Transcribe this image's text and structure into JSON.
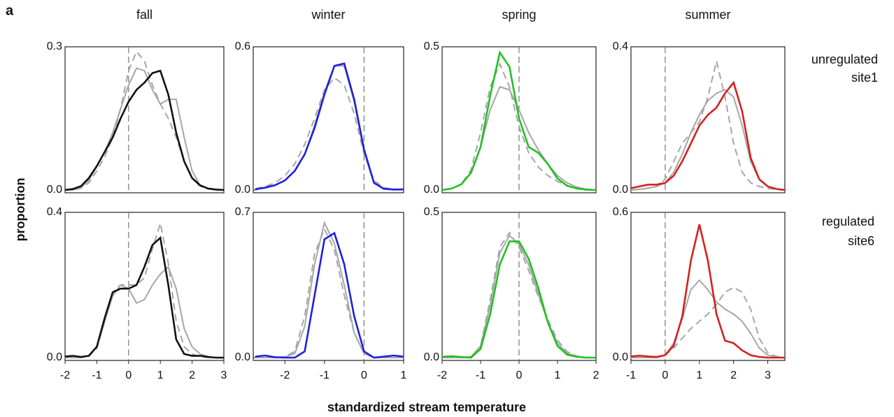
{
  "panel_label": "a",
  "y_label": "proportion",
  "x_label": "standardized stream temperature",
  "column_titles": [
    "fall",
    "winter",
    "spring",
    "summer"
  ],
  "row_labels": [
    [
      "unregulated",
      "site1"
    ],
    [
      "regulated",
      "site6"
    ]
  ],
  "chart_data": [
    {
      "type": "line",
      "xlim": [
        -2,
        3
      ],
      "ylim": [
        0,
        0.3
      ],
      "yticks": [
        {
          "value": 0,
          "label": "0.0"
        },
        0.3
      ],
      "vline": 0,
      "x": [
        -2,
        -1.75,
        -1.5,
        -1.25,
        -1,
        -0.75,
        -0.5,
        -0.25,
        0,
        0.25,
        0.5,
        0.75,
        1,
        1.25,
        1.5,
        1.75,
        2,
        2.25,
        2.5,
        2.75,
        3
      ],
      "series": [
        {
          "color": "#a6a6a6",
          "dash": true,
          "values": [
            0,
            0,
            0.004,
            0.015,
            0.04,
            0.07,
            0.11,
            0.17,
            0.25,
            0.29,
            0.27,
            0.22,
            0.18,
            0.15,
            0.11,
            0.06,
            0.025,
            0.008,
            0.002,
            0,
            0
          ]
        },
        {
          "color": "#a6a6a6",
          "dash": false,
          "values": [
            0,
            0,
            0.005,
            0.02,
            0.05,
            0.08,
            0.12,
            0.17,
            0.22,
            0.255,
            0.25,
            0.21,
            0.18,
            0.19,
            0.19,
            0.11,
            0.04,
            0.01,
            0.003,
            0,
            0
          ]
        },
        {
          "color": "#111111",
          "dash": false,
          "values": [
            0,
            0.002,
            0.008,
            0.025,
            0.05,
            0.08,
            0.11,
            0.15,
            0.185,
            0.21,
            0.225,
            0.245,
            0.25,
            0.2,
            0.12,
            0.06,
            0.025,
            0.01,
            0.003,
            0.001,
            0
          ]
        }
      ]
    },
    {
      "type": "line",
      "xlim": [
        -2.8,
        1
      ],
      "ylim": [
        0,
        0.6
      ],
      "yticks": [
        {
          "value": 0,
          "label": "0.0"
        },
        0.6
      ],
      "vline": 0,
      "x": [
        -2.75,
        -2.5,
        -2.25,
        -2,
        -1.75,
        -1.5,
        -1.25,
        -1,
        -0.75,
        -0.5,
        -0.25,
        0,
        0.25,
        0.5,
        0.75,
        1
      ],
      "series": [
        {
          "color": "#a6a6a6",
          "dash": true,
          "values": [
            0.005,
            0.015,
            0.03,
            0.06,
            0.11,
            0.19,
            0.3,
            0.42,
            0.47,
            0.44,
            0.32,
            0.15,
            0.04,
            0.01,
            0.003,
            0
          ]
        },
        {
          "color": "#a6a6a6",
          "dash": false,
          "values": [
            0.002,
            0.008,
            0.02,
            0.04,
            0.08,
            0.15,
            0.27,
            0.41,
            0.52,
            0.52,
            0.37,
            0.16,
            0.03,
            0.005,
            0.001,
            0
          ]
        },
        {
          "color": "#1f1fe0",
          "dash": false,
          "values": [
            0.003,
            0.01,
            0.02,
            0.04,
            0.08,
            0.15,
            0.26,
            0.4,
            0.52,
            0.53,
            0.38,
            0.17,
            0.03,
            0.005,
            0.002,
            0.003
          ]
        }
      ]
    },
    {
      "type": "line",
      "xlim": [
        -2,
        2
      ],
      "ylim": [
        0,
        0.5
      ],
      "yticks": [
        {
          "value": 0,
          "label": "0.0"
        },
        0.5
      ],
      "vline": 0,
      "x": [
        -2,
        -1.75,
        -1.5,
        -1.25,
        -1,
        -0.75,
        -0.5,
        -0.25,
        0,
        0.25,
        0.5,
        0.75,
        1,
        1.25,
        1.5,
        1.75,
        2
      ],
      "series": [
        {
          "color": "#a6a6a6",
          "dash": true,
          "values": [
            0,
            0.005,
            0.02,
            0.07,
            0.2,
            0.36,
            0.44,
            0.36,
            0.22,
            0.13,
            0.08,
            0.05,
            0.03,
            0.015,
            0.005,
            0.002,
            0
          ]
        },
        {
          "color": "#a6a6a6",
          "dash": false,
          "values": [
            0,
            0.005,
            0.02,
            0.06,
            0.15,
            0.28,
            0.36,
            0.35,
            0.28,
            0.2,
            0.14,
            0.09,
            0.05,
            0.025,
            0.01,
            0.003,
            0
          ]
        },
        {
          "color": "#22c022",
          "dash": false,
          "values": [
            0,
            0.005,
            0.02,
            0.06,
            0.15,
            0.33,
            0.48,
            0.43,
            0.25,
            0.15,
            0.13,
            0.09,
            0.04,
            0.015,
            0.005,
            0.001,
            0
          ]
        }
      ]
    },
    {
      "type": "line",
      "xlim": [
        -1,
        3.5
      ],
      "ylim": [
        0,
        0.4
      ],
      "yticks": [
        {
          "value": 0,
          "label": "0.0"
        },
        0.4
      ],
      "vline": 0,
      "x": [
        -1,
        -0.75,
        -0.5,
        -0.25,
        0,
        0.25,
        0.5,
        0.75,
        1,
        1.25,
        1.5,
        1.75,
        2,
        2.25,
        2.5,
        2.75,
        3,
        3.25,
        3.5
      ],
      "series": [
        {
          "color": "#a6a6a6",
          "dash": true,
          "values": [
            0,
            0.002,
            0.005,
            0.01,
            0.03,
            0.08,
            0.13,
            0.16,
            0.19,
            0.26,
            0.36,
            0.26,
            0.13,
            0.05,
            0.02,
            0.01,
            0.004,
            0.001,
            0
          ]
        },
        {
          "color": "#a6a6a6",
          "dash": false,
          "values": [
            0,
            0.002,
            0.005,
            0.01,
            0.02,
            0.05,
            0.1,
            0.16,
            0.21,
            0.25,
            0.27,
            0.28,
            0.26,
            0.18,
            0.08,
            0.03,
            0.01,
            0.003,
            0
          ]
        },
        {
          "color": "#d42020",
          "dash": false,
          "values": [
            0.005,
            0.01,
            0.015,
            0.015,
            0.02,
            0.04,
            0.08,
            0.13,
            0.18,
            0.21,
            0.23,
            0.27,
            0.3,
            0.22,
            0.09,
            0.03,
            0.01,
            0.003,
            0
          ]
        }
      ]
    },
    {
      "type": "line",
      "xlim": [
        -2,
        3
      ],
      "ylim": [
        0,
        0.4
      ],
      "yticks": [
        {
          "value": 0,
          "label": "0.0"
        },
        0.4
      ],
      "xticks": [
        -2,
        -1,
        0,
        1,
        2,
        3
      ],
      "vline": 0,
      "x": [
        -2,
        -1.75,
        -1.5,
        -1.25,
        -1,
        -0.75,
        -0.5,
        -0.25,
        0,
        0.25,
        0.5,
        0.75,
        1,
        1.25,
        1.5,
        1.75,
        2,
        2.25,
        2.5,
        2.75,
        3
      ],
      "series": [
        {
          "color": "#a6a6a6",
          "dash": true,
          "values": [
            0,
            0,
            0,
            0.005,
            0.025,
            0.1,
            0.18,
            0.2,
            0.2,
            0.2,
            0.22,
            0.3,
            0.37,
            0.26,
            0.1,
            0.03,
            0.01,
            0.003,
            0,
            0,
            0
          ]
        },
        {
          "color": "#a6a6a6",
          "dash": false,
          "values": [
            0,
            0,
            0,
            0.005,
            0.03,
            0.1,
            0.17,
            0.2,
            0.19,
            0.15,
            0.16,
            0.2,
            0.23,
            0.25,
            0.19,
            0.08,
            0.03,
            0.01,
            0.003,
            0,
            0
          ]
        },
        {
          "color": "#111111",
          "dash": false,
          "values": [
            0.003,
            0.005,
            0.002,
            0.005,
            0.03,
            0.11,
            0.18,
            0.19,
            0.19,
            0.2,
            0.25,
            0.31,
            0.33,
            0.2,
            0.05,
            0.01,
            0.005,
            0.005,
            0.002,
            0,
            0
          ]
        }
      ]
    },
    {
      "type": "line",
      "xlim": [
        -2.8,
        1
      ],
      "ylim": [
        0,
        0.7
      ],
      "yticks": [
        {
          "value": 0,
          "label": "0.0"
        },
        0.7
      ],
      "xticks": [
        -2,
        -1,
        0,
        1
      ],
      "vline": 0,
      "x": [
        -2.75,
        -2.5,
        -2.25,
        -2,
        -1.75,
        -1.5,
        -1.25,
        -1,
        -0.75,
        -0.5,
        -0.25,
        0,
        0.25,
        0.5,
        0.75,
        1
      ],
      "series": [
        {
          "color": "#a6a6a6",
          "dash": true,
          "values": [
            0,
            0,
            0,
            0.005,
            0.03,
            0.2,
            0.5,
            0.62,
            0.52,
            0.3,
            0.12,
            0.02,
            0,
            0,
            0,
            0
          ]
        },
        {
          "color": "#a6a6a6",
          "dash": false,
          "values": [
            0,
            0,
            0,
            0.003,
            0.02,
            0.15,
            0.45,
            0.65,
            0.55,
            0.35,
            0.12,
            0.02,
            0,
            0,
            0,
            0
          ]
        },
        {
          "color": "#1f1fe0",
          "dash": false,
          "values": [
            0.005,
            0.01,
            0.002,
            0,
            0,
            0.03,
            0.3,
            0.57,
            0.6,
            0.45,
            0.2,
            0.03,
            0,
            0.005,
            0.01,
            0.005
          ]
        }
      ]
    },
    {
      "type": "line",
      "xlim": [
        -2,
        2
      ],
      "ylim": [
        0,
        0.5
      ],
      "yticks": [
        {
          "value": 0,
          "label": "0.0"
        },
        0.5
      ],
      "xticks": [
        -2,
        -1,
        0,
        1,
        2
      ],
      "vline": 0,
      "x": [
        -2,
        -1.75,
        -1.5,
        -1.25,
        -1,
        -0.75,
        -0.5,
        -0.25,
        0,
        0.25,
        0.5,
        0.75,
        1,
        1.25,
        1.5,
        1.75,
        2
      ],
      "series": [
        {
          "color": "#a6a6a6",
          "dash": true,
          "values": [
            0,
            0,
            0,
            0.003,
            0.04,
            0.2,
            0.38,
            0.43,
            0.38,
            0.3,
            0.21,
            0.13,
            0.06,
            0.02,
            0.005,
            0,
            0
          ]
        },
        {
          "color": "#a6a6a6",
          "dash": false,
          "values": [
            0,
            0,
            0,
            0.003,
            0.04,
            0.18,
            0.36,
            0.42,
            0.39,
            0.32,
            0.22,
            0.12,
            0.05,
            0.015,
            0.004,
            0,
            0
          ]
        },
        {
          "color": "#22c022",
          "dash": false,
          "values": [
            0.003,
            0.005,
            0.002,
            0,
            0.03,
            0.15,
            0.32,
            0.4,
            0.4,
            0.34,
            0.24,
            0.12,
            0.04,
            0.01,
            0.003,
            0,
            0
          ]
        }
      ]
    },
    {
      "type": "line",
      "xlim": [
        -1,
        3.5
      ],
      "ylim": [
        0,
        0.6
      ],
      "yticks": [
        {
          "value": 0,
          "label": "0.0"
        },
        0.6
      ],
      "xticks": [
        -1,
        0,
        1,
        2,
        3
      ],
      "vline": 0,
      "x": [
        -1,
        -0.75,
        -0.5,
        -0.25,
        0,
        0.25,
        0.5,
        0.75,
        1,
        1.25,
        1.5,
        1.75,
        2,
        2.25,
        2.5,
        2.75,
        3,
        3.25,
        3.5
      ],
      "series": [
        {
          "color": "#a6a6a6",
          "dash": true,
          "values": [
            0,
            0,
            0,
            0,
            0.01,
            0.04,
            0.08,
            0.12,
            0.15,
            0.18,
            0.22,
            0.27,
            0.29,
            0.27,
            0.2,
            0.08,
            0.02,
            0.005,
            0
          ]
        },
        {
          "color": "#a6a6a6",
          "dash": false,
          "values": [
            0,
            0,
            0,
            0,
            0.01,
            0.06,
            0.16,
            0.28,
            0.32,
            0.28,
            0.23,
            0.2,
            0.18,
            0.15,
            0.1,
            0.04,
            0.01,
            0.002,
            0
          ]
        },
        {
          "color": "#d42020",
          "dash": false,
          "values": [
            0.005,
            0.008,
            0.005,
            0.003,
            0.01,
            0.05,
            0.17,
            0.4,
            0.55,
            0.4,
            0.18,
            0.07,
            0.06,
            0.03,
            0.01,
            0.003,
            0,
            0,
            0
          ]
        }
      ]
    }
  ]
}
